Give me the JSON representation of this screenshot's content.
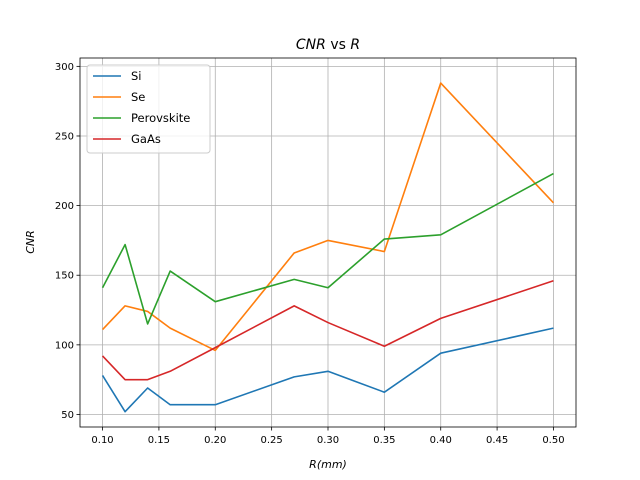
{
  "chart_data": {
    "type": "line",
    "title_main": "CNR",
    "title_mid": " vs ",
    "title_end": "R",
    "xlabel_var": "R",
    "xlabel_unit": "(mm)",
    "ylabel": "CNR",
    "xlim": [
      0.08,
      0.52
    ],
    "ylim": [
      41,
      306
    ],
    "xticks": [
      0.1,
      0.15,
      0.2,
      0.25,
      0.3,
      0.35,
      0.4,
      0.45,
      0.5
    ],
    "xtick_labels": [
      "0.10",
      "0.15",
      "0.20",
      "0.25",
      "0.30",
      "0.35",
      "0.40",
      "0.45",
      "0.50"
    ],
    "yticks": [
      50,
      100,
      150,
      200,
      250,
      300
    ],
    "ytick_labels": [
      "50",
      "100",
      "150",
      "200",
      "250",
      "300"
    ],
    "grid": true,
    "legend_position": "top-left",
    "x": [
      0.1,
      0.12,
      0.14,
      0.16,
      0.2,
      0.27,
      0.3,
      0.35,
      0.4,
      0.5
    ],
    "series": [
      {
        "name": "Si",
        "color": "#1f77b4",
        "values": [
          78,
          52,
          69,
          57,
          57,
          77,
          81,
          66,
          94,
          112
        ]
      },
      {
        "name": "Se",
        "color": "#ff7f0e",
        "values": [
          111,
          128,
          124,
          112,
          96,
          166,
          175,
          167,
          288,
          202
        ]
      },
      {
        "name": "Perovskite",
        "color": "#2ca02c",
        "values": [
          141,
          172,
          115,
          153,
          131,
          147,
          141,
          176,
          179,
          223
        ]
      },
      {
        "name": "GaAs",
        "color": "#d62728",
        "values": [
          92,
          75,
          75,
          81,
          98,
          128,
          116,
          99,
          119,
          146
        ]
      }
    ]
  }
}
